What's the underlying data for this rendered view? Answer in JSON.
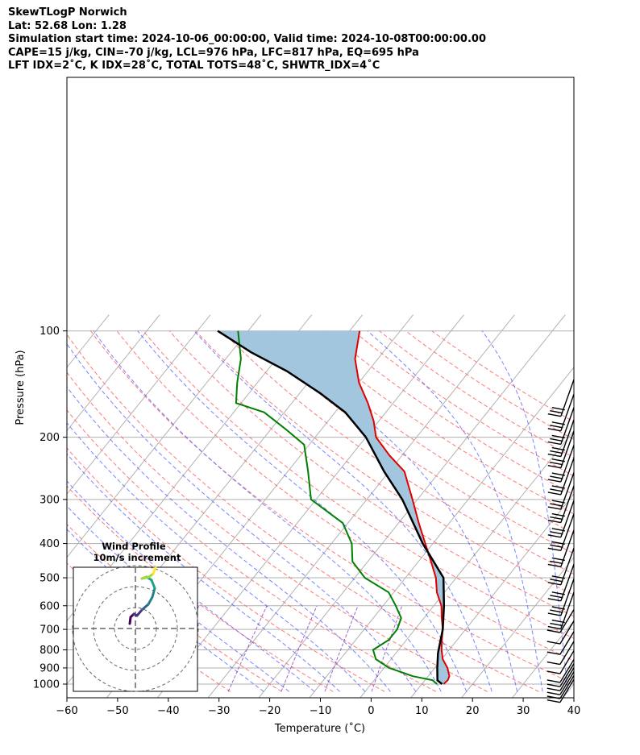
{
  "header": {
    "line1": "SkewTLogP Norwich",
    "line2": "Lat: 52.68   Lon: 1.28",
    "line3": "Simulation start time: 2024-10-06_00:00:00, Valid time: 2024-10-08T00:00:00.00",
    "line4": "CAPE=15 j/kg, CIN=-70 j/kg, LCL=976 hPa, LFC=817 hPa, EQ=695 hPa",
    "line5": "LFT IDX=2˚C, K IDX=28˚C, TOTAL TOTS=48˚C, SHWTR_IDX=4˚C"
  },
  "chart_data": {
    "type": "skew-t log-p",
    "xlabel": "Temperature (˚C)",
    "ylabel": "Pressure (hPa)",
    "xlim": [
      -60,
      40
    ],
    "ylim": [
      1050,
      100
    ],
    "x_ticks": [
      "−60",
      "−50",
      "−40",
      "−30",
      "−20",
      "−10",
      "0",
      "10",
      "20",
      "30",
      "40"
    ],
    "y_ticks": [
      "100",
      "200",
      "300",
      "400",
      "500",
      "600",
      "700",
      "800",
      "900",
      "1000"
    ],
    "y_tick_values": [
      100,
      200,
      300,
      400,
      500,
      600,
      700,
      800,
      900,
      1000
    ],
    "grid": true,
    "colors": {
      "temperature": "#e00000",
      "dewpoint": "#008000",
      "parcel": "#000000",
      "cape_shading": "#a3c6df",
      "isotherms": "#b0b0b0",
      "dry_adiabats": "#ff6a6a",
      "moist_adiabats": "#4a5bff",
      "mixing_ratio": "#8a3dbd"
    },
    "series": [
      {
        "role": "temperature",
        "points": [
          [
            14.3,
            1000
          ],
          [
            14.5,
            975
          ],
          [
            14.2,
            950
          ],
          [
            12.5,
            900
          ],
          [
            10.2,
            850
          ],
          [
            8.5,
            800
          ],
          [
            7.0,
            750
          ],
          [
            5.5,
            700
          ],
          [
            3.5,
            650
          ],
          [
            1.5,
            600
          ],
          [
            -1.5,
            550
          ],
          [
            -4.0,
            500
          ],
          [
            -7.5,
            450
          ],
          [
            -11.5,
            400
          ],
          [
            -16.0,
            350
          ],
          [
            -21.0,
            300
          ],
          [
            -27.0,
            250
          ],
          [
            -32.5,
            225
          ],
          [
            -38.0,
            200
          ],
          [
            -41.0,
            180
          ],
          [
            -45.0,
            160
          ],
          [
            -50.0,
            140
          ],
          [
            -54.5,
            120
          ],
          [
            -58.0,
            100
          ]
        ]
      },
      {
        "role": "dewpoint",
        "points": [
          [
            13.0,
            1000
          ],
          [
            11.5,
            975
          ],
          [
            7.0,
            950
          ],
          [
            1.0,
            900
          ],
          [
            -3.0,
            850
          ],
          [
            -5.0,
            800
          ],
          [
            -3.5,
            750
          ],
          [
            -3.5,
            700
          ],
          [
            -4.5,
            650
          ],
          [
            -7.5,
            600
          ],
          [
            -11.0,
            550
          ],
          [
            -18.0,
            500
          ],
          [
            -23.0,
            450
          ],
          [
            -26.0,
            400
          ],
          [
            -31.0,
            350
          ],
          [
            -41.0,
            300
          ],
          [
            -46.0,
            250
          ],
          [
            -51.0,
            210
          ],
          [
            -57.0,
            190
          ],
          [
            -64.0,
            170
          ],
          [
            -71.0,
            160
          ],
          [
            -74.0,
            140
          ],
          [
            -77.0,
            120
          ],
          [
            -82.0,
            100
          ]
        ]
      },
      {
        "role": "parcel",
        "points": [
          [
            14.0,
            1000
          ],
          [
            12.5,
            976
          ],
          [
            10.5,
            900
          ],
          [
            8.3,
            817
          ],
          [
            5.5,
            700
          ],
          [
            2.0,
            600
          ],
          [
            -2.5,
            500
          ],
          [
            -12.0,
            400
          ],
          [
            -23.0,
            300
          ],
          [
            -31.0,
            250
          ],
          [
            -40.0,
            200
          ],
          [
            -48.0,
            170
          ],
          [
            -56.0,
            150
          ],
          [
            -66.0,
            130
          ],
          [
            -76.0,
            115
          ],
          [
            -86.0,
            100
          ]
        ]
      }
    ],
    "wind_barbs_pressure_hpa": [
      150,
      165,
      180,
      195,
      210,
      230,
      250,
      275,
      300,
      330,
      360,
      400,
      450,
      500,
      550,
      600,
      650,
      700,
      750,
      800,
      850,
      900,
      925,
      950,
      975,
      1000,
      1025
    ],
    "inset": {
      "title": "Wind Profile",
      "subtitle": "10m/s increment",
      "rings": 3
    }
  }
}
